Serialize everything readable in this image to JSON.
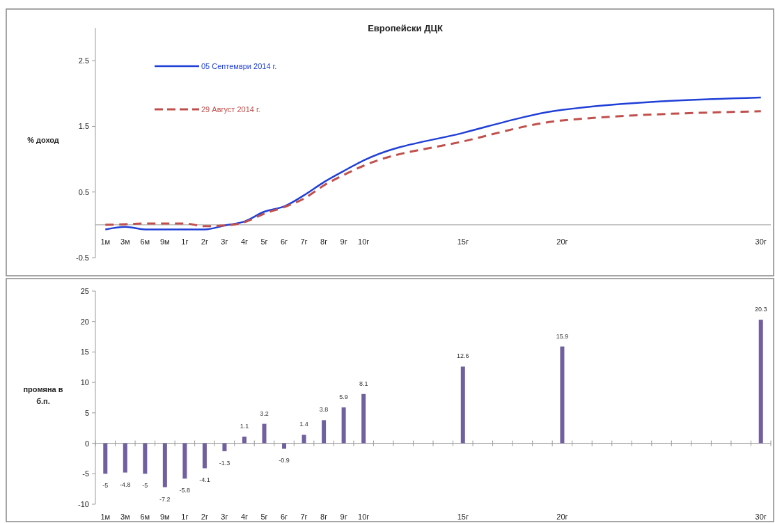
{
  "chart_data": [
    {
      "type": "line",
      "title": "Европейски ДЦК",
      "ylabel": "% доход",
      "categories": [
        "1м",
        "3м",
        "6м",
        "9м",
        "1г",
        "2г",
        "3г",
        "4г",
        "5г",
        "6г",
        "7г",
        "8г",
        "9г",
        "10г",
        null,
        null,
        null,
        null,
        "15г",
        null,
        null,
        null,
        null,
        "20г",
        null,
        null,
        null,
        null,
        null,
        null,
        null,
        null,
        null,
        "30г"
      ],
      "series": [
        {
          "name": "05 Септември 2014 г.",
          "color": "#1f3fd6",
          "line_style": "solid",
          "values": [
            -0.07,
            -0.03,
            -0.07,
            -0.07,
            -0.07,
            -0.07,
            -0.01,
            0.05,
            0.2,
            0.28,
            0.45,
            0.65,
            0.82,
            0.98,
            null,
            null,
            null,
            null,
            1.4,
            null,
            null,
            null,
            null,
            1.75,
            null,
            null,
            null,
            null,
            null,
            null,
            null,
            null,
            null,
            1.94
          ]
        },
        {
          "name": "29 Август 2014 г.",
          "color": "#c0504d",
          "line_style": "dashed",
          "values": [
            0.0,
            0.01,
            0.02,
            0.02,
            0.02,
            -0.02,
            -0.01,
            0.04,
            0.17,
            0.27,
            0.4,
            0.6,
            0.76,
            0.9,
            null,
            null,
            null,
            null,
            1.27,
            null,
            null,
            null,
            null,
            1.59,
            null,
            null,
            null,
            null,
            null,
            null,
            null,
            null,
            null,
            1.73
          ]
        }
      ],
      "ylim": [
        -0.5,
        3.0
      ],
      "yticks": [
        -0.5,
        0.5,
        1.5,
        2.5
      ],
      "legend": "top left",
      "grid": false
    },
    {
      "type": "bar",
      "ylabel": "промяна в б.п.",
      "categories": [
        "1м",
        "3м",
        "6м",
        "9м",
        "1г",
        "2г",
        "3г",
        "4г",
        "5г",
        "6г",
        "7г",
        "8г",
        "9г",
        "10г",
        null,
        null,
        null,
        null,
        "15г",
        null,
        null,
        null,
        null,
        "20г",
        null,
        null,
        null,
        null,
        null,
        null,
        null,
        null,
        null,
        "30г"
      ],
      "values": [
        -5,
        -4.8,
        -5,
        -7.2,
        -5.8,
        -4.1,
        -1.3,
        1.1,
        3.2,
        -0.9,
        1.4,
        3.8,
        5.9,
        8.1,
        null,
        null,
        null,
        null,
        12.6,
        null,
        null,
        null,
        null,
        15.9,
        null,
        null,
        null,
        null,
        null,
        null,
        null,
        null,
        null,
        20.3
      ],
      "color": "#7060a0",
      "data_labels": true,
      "ylim": [
        -10,
        25
      ],
      "yticks": [
        -10,
        -5,
        0,
        5,
        10,
        15,
        20,
        25
      ],
      "grid": false
    }
  ]
}
